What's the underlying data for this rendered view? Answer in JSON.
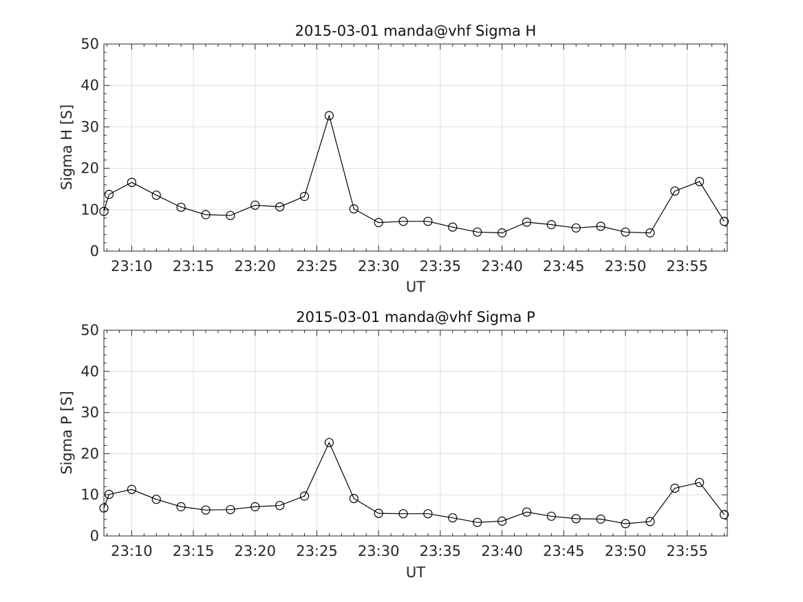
{
  "chart_data": [
    {
      "type": "line",
      "title": "2015-03-01  manda@vhf Sigma H",
      "xlabel": "UT",
      "ylabel": "Sigma H [S]",
      "xlim": [
        "23:07:45",
        "23:58:15"
      ],
      "ylim": [
        0,
        50
      ],
      "yticks": [
        0,
        10,
        20,
        30,
        40,
        50
      ],
      "xticks": [
        "23:10",
        "23:15",
        "23:20",
        "23:25",
        "23:30",
        "23:35",
        "23:40",
        "23:45",
        "23:50",
        "23:55"
      ],
      "grid": true,
      "marker": "open-circle",
      "line_color": "#000000",
      "x": [
        "23:07:45",
        "23:08:10",
        "23:10",
        "23:12",
        "23:14",
        "23:16",
        "23:18",
        "23:20",
        "23:22",
        "23:24",
        "23:26",
        "23:28",
        "23:30",
        "23:32",
        "23:34",
        "23:36",
        "23:38",
        "23:40",
        "23:42",
        "23:44",
        "23:46",
        "23:48",
        "23:50",
        "23:52",
        "23:54",
        "23:56",
        "23:58"
      ],
      "series": [
        {
          "values": [
            9.6,
            13.7,
            16.6,
            13.5,
            10.6,
            8.8,
            8.6,
            11.1,
            10.7,
            13.2,
            32.7,
            10.2,
            6.9,
            7.2,
            7.2,
            5.8,
            4.6,
            4.4,
            7.0,
            6.4,
            5.6,
            6.0,
            4.6,
            4.4,
            14.5,
            16.8,
            7.2
          ]
        }
      ]
    },
    {
      "type": "line",
      "title": "2015-03-01  manda@vhf Sigma P",
      "xlabel": "UT",
      "ylabel": "Sigma P [S]",
      "xlim": [
        "23:07:45",
        "23:58:15"
      ],
      "ylim": [
        0,
        50
      ],
      "yticks": [
        0,
        10,
        20,
        30,
        40,
        50
      ],
      "xticks": [
        "23:10",
        "23:15",
        "23:20",
        "23:25",
        "23:30",
        "23:35",
        "23:40",
        "23:45",
        "23:50",
        "23:55"
      ],
      "grid": true,
      "marker": "open-circle",
      "line_color": "#000000",
      "x": [
        "23:07:45",
        "23:08:10",
        "23:10",
        "23:12",
        "23:14",
        "23:16",
        "23:18",
        "23:20",
        "23:22",
        "23:24",
        "23:26",
        "23:28",
        "23:30",
        "23:32",
        "23:34",
        "23:36",
        "23:38",
        "23:40",
        "23:42",
        "23:44",
        "23:46",
        "23:48",
        "23:50",
        "23:52",
        "23:54",
        "23:56",
        "23:58"
      ],
      "series": [
        {
          "values": [
            6.8,
            10.1,
            11.3,
            8.9,
            7.1,
            6.3,
            6.4,
            7.1,
            7.4,
            9.7,
            22.7,
            9.1,
            5.5,
            5.4,
            5.4,
            4.4,
            3.3,
            3.6,
            5.8,
            4.8,
            4.2,
            4.1,
            3.0,
            3.5,
            11.6,
            13.0,
            5.2
          ]
        }
      ]
    }
  ]
}
